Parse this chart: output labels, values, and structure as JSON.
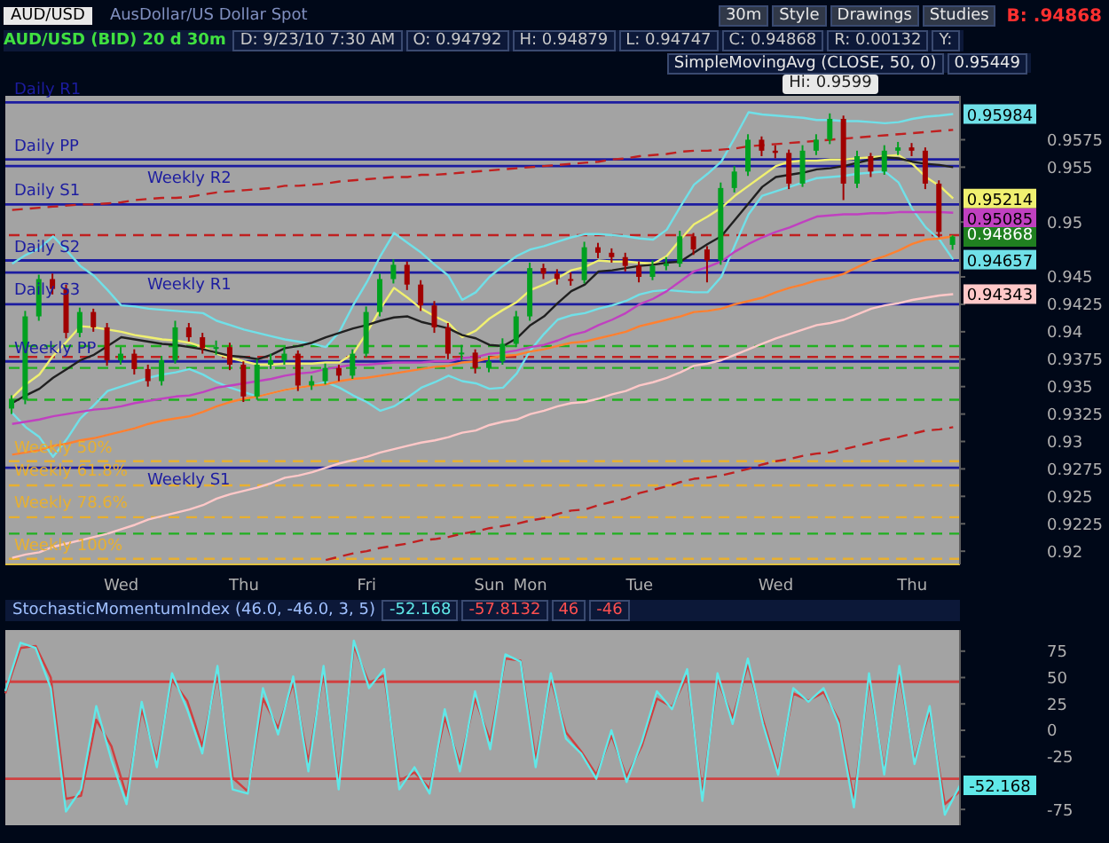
{
  "chart_data": [
    {
      "type": "candlestick",
      "title": "AUD/USD (BID) 20 d 30m",
      "annotations": [
        "AUD/USD",
        "AusDollar/US Dollar Spot",
        "30m",
        "Style",
        "Drawings",
        "Studies",
        "B: .94868",
        "D: 9/23/10 7:30 AM",
        "O: 0.94792",
        "H: 0.94879",
        "L: 0.94747",
        "C: 0.94868",
        "R: 0.00132",
        "Y:",
        "SimpleMovingAvg (CLOSE, 50, 0)",
        "0.95449",
        {
          "text": "Hi: 0.9599",
          "y": 0.9599
        },
        "0.94868"
      ],
      "categories": [
        null,
        null,
        null,
        null,
        null,
        null,
        null,
        null,
        "Wed",
        null,
        null,
        null,
        null,
        null,
        null,
        null,
        null,
        "Thu",
        null,
        null,
        null,
        null,
        null,
        null,
        null,
        null,
        "Fri",
        null,
        null,
        null,
        null,
        null,
        null,
        null,
        null,
        "Sun",
        null,
        null,
        "Mon",
        null,
        null,
        null,
        null,
        null,
        null,
        null,
        "Tue",
        null,
        null,
        null,
        null,
        null,
        null,
        null,
        null,
        null,
        "Wed",
        null,
        null,
        null,
        null,
        null,
        null,
        null,
        null,
        null,
        "Thu",
        null,
        null,
        null
      ],
      "ohlc": [
        [
          0.933,
          0.9342,
          0.9325,
          0.9338
        ],
        [
          0.9338,
          0.9419,
          0.9334,
          0.9414
        ],
        [
          0.9414,
          0.9452,
          0.941,
          0.9448
        ],
        [
          0.9448,
          0.9453,
          0.9434,
          0.9439
        ],
        [
          0.9439,
          0.9443,
          0.9394,
          0.9399
        ],
        [
          0.9399,
          0.9422,
          0.9395,
          0.9418
        ],
        [
          0.9418,
          0.9421,
          0.94,
          0.9404
        ],
        [
          0.9404,
          0.9408,
          0.9369,
          0.9374
        ],
        [
          0.9374,
          0.9386,
          0.937,
          0.938
        ],
        [
          0.938,
          0.9384,
          0.9361,
          0.9366
        ],
        [
          0.9366,
          0.937,
          0.935,
          0.9355
        ],
        [
          0.9355,
          0.9378,
          0.9351,
          0.9374
        ],
        [
          0.9374,
          0.941,
          0.9371,
          0.9404
        ],
        [
          0.9404,
          0.9408,
          0.9391,
          0.9395
        ],
        [
          0.9395,
          0.9399,
          0.938,
          0.9385
        ],
        [
          0.9385,
          0.9392,
          0.9379,
          0.9386
        ],
        [
          0.9386,
          0.939,
          0.9365,
          0.937
        ],
        [
          0.937,
          0.9373,
          0.9336,
          0.9341
        ],
        [
          0.9341,
          0.9375,
          0.9338,
          0.937
        ],
        [
          0.937,
          0.938,
          0.9366,
          0.9374
        ],
        [
          0.9374,
          0.9386,
          0.937,
          0.938
        ],
        [
          0.938,
          0.9383,
          0.9346,
          0.9351
        ],
        [
          0.9351,
          0.936,
          0.9347,
          0.9355
        ],
        [
          0.9355,
          0.9371,
          0.9352,
          0.9367
        ],
        [
          0.9367,
          0.937,
          0.9355,
          0.936
        ],
        [
          0.936,
          0.9384,
          0.9357,
          0.938
        ],
        [
          0.938,
          0.9423,
          0.9377,
          0.9418
        ],
        [
          0.9418,
          0.9453,
          0.9414,
          0.9448
        ],
        [
          0.9448,
          0.9466,
          0.9444,
          0.9461
        ],
        [
          0.9461,
          0.9464,
          0.9438,
          0.9443
        ],
        [
          0.9443,
          0.9447,
          0.9419,
          0.9424
        ],
        [
          0.9424,
          0.9428,
          0.9399,
          0.9404
        ],
        [
          0.9404,
          0.9408,
          0.9375,
          0.938
        ],
        [
          0.938,
          0.9388,
          0.9374,
          0.9381
        ],
        [
          0.9381,
          0.9384,
          0.9362,
          0.9367
        ],
        [
          0.9367,
          0.9378,
          0.9363,
          0.9373
        ],
        [
          0.9373,
          0.9394,
          0.937,
          0.9389
        ],
        [
          0.9389,
          0.9419,
          0.9386,
          0.9414
        ],
        [
          0.9414,
          0.9463,
          0.941,
          0.9458
        ],
        [
          0.9458,
          0.9462,
          0.9448,
          0.9453
        ],
        [
          0.9453,
          0.9457,
          0.9443,
          0.9448
        ],
        [
          0.9448,
          0.9454,
          0.9442,
          0.9447
        ],
        [
          0.9447,
          0.9482,
          0.9444,
          0.9477
        ],
        [
          0.9477,
          0.9481,
          0.9467,
          0.9472
        ],
        [
          0.9472,
          0.9476,
          0.9463,
          0.9468
        ],
        [
          0.9468,
          0.9472,
          0.9455,
          0.946
        ],
        [
          0.946,
          0.9464,
          0.9445,
          0.945
        ],
        [
          0.945,
          0.9465,
          0.9447,
          0.946
        ],
        [
          0.946,
          0.9468,
          0.9456,
          0.9462
        ],
        [
          0.9462,
          0.9492,
          0.9459,
          0.9487
        ],
        [
          0.9487,
          0.949,
          0.947,
          0.9475
        ],
        [
          0.9475,
          0.9478,
          0.9445,
          0.9465
        ],
        [
          0.9465,
          0.9536,
          0.9461,
          0.9531
        ],
        [
          0.9531,
          0.9551,
          0.9527,
          0.9546
        ],
        [
          0.9546,
          0.958,
          0.9542,
          0.9575
        ],
        [
          0.9575,
          0.9578,
          0.956,
          0.9565
        ],
        [
          0.9565,
          0.957,
          0.9558,
          0.9563
        ],
        [
          0.9563,
          0.9566,
          0.953,
          0.9535
        ],
        [
          0.9535,
          0.957,
          0.9532,
          0.9565
        ],
        [
          0.9565,
          0.958,
          0.9561,
          0.9575
        ],
        [
          0.9575,
          0.9599,
          0.9571,
          0.9594
        ],
        [
          0.9594,
          0.9597,
          0.952,
          0.9535
        ],
        [
          0.9535,
          0.9565,
          0.9531,
          0.956
        ],
        [
          0.956,
          0.9563,
          0.9541,
          0.9546
        ],
        [
          0.9546,
          0.957,
          0.9543,
          0.9565
        ],
        [
          0.9565,
          0.9573,
          0.9561,
          0.9568
        ],
        [
          0.9568,
          0.9572,
          0.956,
          0.9565
        ],
        [
          0.9565,
          0.9568,
          0.953,
          0.9535
        ],
        [
          0.9535,
          0.9538,
          0.9486,
          0.9491
        ],
        [
          0.94792,
          0.94879,
          0.94747,
          0.94868
        ]
      ],
      "series": [
        {
          "type": "line",
          "color": "#70e0e8",
          "values": [
            0.9462,
            0.947,
            0.9476,
            0.9487,
            0.9474,
            0.946,
            0.9451,
            0.9438,
            0.9424,
            0.9423,
            0.9421,
            0.942,
            0.9419,
            0.9418,
            0.9417,
            0.941,
            0.9406,
            0.9402,
            0.9399,
            0.9396,
            0.9393,
            0.9391,
            0.9389,
            0.9386,
            0.94,
            0.9424,
            0.9445,
            0.9469,
            0.949,
            0.9481,
            0.9472,
            0.9461,
            0.9451,
            0.9429,
            0.9436,
            0.945,
            0.946,
            0.9469,
            0.9475,
            0.9478,
            0.9482,
            0.9486,
            0.9489,
            0.9489,
            0.9488,
            0.9487,
            0.9485,
            0.9484,
            0.9493,
            0.9514,
            0.9534,
            0.9544,
            0.9555,
            0.9577,
            0.96,
            0.9598,
            0.9597,
            0.9596,
            0.9595,
            0.9593,
            0.9593,
            0.9592,
            0.9592,
            0.9591,
            0.959,
            0.9591,
            0.9594,
            0.9596,
            0.9597,
            0.95984
          ],
          "value_labels": [
            null,
            null,
            null,
            null,
            null,
            null,
            null,
            null,
            null,
            null,
            null,
            null,
            null,
            null,
            null,
            null,
            null,
            null,
            null,
            null,
            null,
            null,
            null,
            null,
            null,
            null,
            null,
            null,
            null,
            null,
            null,
            null,
            null,
            null,
            null,
            null,
            null,
            null,
            null,
            null,
            null,
            null,
            null,
            null,
            null,
            null,
            null,
            null,
            null,
            null,
            null,
            null,
            null,
            null,
            null,
            null,
            null,
            null,
            null,
            null,
            null,
            null,
            null,
            null,
            null,
            null,
            null,
            null,
            null,
            "0.95984"
          ]
        },
        {
          "type": "line",
          "color": "#70e0e8",
          "values": [
            0.9326,
            0.9313,
            0.9304,
            0.9286,
            0.9302,
            0.9321,
            0.9333,
            0.9346,
            0.935,
            0.9354,
            0.9358,
            0.9361,
            0.9363,
            0.9366,
            0.9361,
            0.9354,
            0.9349,
            0.9345,
            0.9341,
            0.9344,
            0.9347,
            0.9349,
            0.9351,
            0.9354,
            0.9349,
            0.9342,
            0.9336,
            0.9328,
            0.9332,
            0.934,
            0.9349,
            0.9354,
            0.936,
            0.9355,
            0.9353,
            0.9348,
            0.9349,
            0.9362,
            0.9383,
            0.9398,
            0.9411,
            0.9415,
            0.9417,
            0.9421,
            0.9424,
            0.9428,
            0.9434,
            0.9437,
            0.9438,
            0.9437,
            0.9436,
            0.9436,
            0.945,
            0.9479,
            0.9507,
            0.9524,
            0.9528,
            0.9532,
            0.9536,
            0.954,
            0.9541,
            0.9542,
            0.9544,
            0.9545,
            0.9546,
            0.9536,
            0.9512,
            0.9495,
            0.9484,
            0.94657
          ],
          "value_labels": [
            null,
            null,
            null,
            null,
            null,
            null,
            null,
            null,
            null,
            null,
            null,
            null,
            null,
            null,
            null,
            null,
            null,
            null,
            null,
            null,
            null,
            null,
            null,
            null,
            null,
            null,
            null,
            null,
            null,
            null,
            null,
            null,
            null,
            null,
            null,
            null,
            null,
            null,
            null,
            null,
            null,
            null,
            null,
            null,
            null,
            null,
            null,
            null,
            null,
            null,
            null,
            null,
            null,
            null,
            null,
            null,
            null,
            null,
            null,
            null,
            null,
            null,
            null,
            null,
            null,
            null,
            null,
            null,
            null,
            "0.94657"
          ]
        },
        {
          "type": "line",
          "color": "#f0f070",
          "values": [
            0.934,
            0.9352,
            0.9361,
            0.9378,
            0.9391,
            0.9405,
            0.9404,
            0.9402,
            0.94,
            0.9397,
            0.9395,
            0.9393,
            0.9392,
            0.939,
            0.9386,
            0.938,
            0.9376,
            0.9373,
            0.937,
            0.937,
            0.9371,
            0.9371,
            0.9371,
            0.9372,
            0.9372,
            0.938,
            0.9399,
            0.9421,
            0.944,
            0.9431,
            0.9421,
            0.9414,
            0.9408,
            0.9395,
            0.9401,
            0.9412,
            0.942,
            0.9427,
            0.9438,
            0.9443,
            0.9449,
            0.9456,
            0.9459,
            0.9465,
            0.9464,
            0.9464,
            0.9463,
            0.9462,
            0.9469,
            0.9484,
            0.9498,
            0.9505,
            0.9513,
            0.9524,
            0.9533,
            0.9542,
            0.9551,
            0.9555,
            0.9556,
            0.9556,
            0.9557,
            0.9557,
            0.9558,
            0.9559,
            0.956,
            0.9561,
            0.9553,
            0.9541,
            0.9533,
            0.95214
          ],
          "value_labels": [
            null,
            null,
            null,
            null,
            null,
            null,
            null,
            null,
            null,
            null,
            null,
            null,
            null,
            null,
            null,
            null,
            null,
            null,
            null,
            null,
            null,
            null,
            null,
            null,
            null,
            null,
            null,
            null,
            null,
            null,
            null,
            null,
            null,
            null,
            null,
            null,
            null,
            null,
            null,
            null,
            null,
            null,
            null,
            null,
            null,
            null,
            null,
            null,
            null,
            null,
            null,
            null,
            null,
            null,
            null,
            null,
            null,
            null,
            null,
            null,
            null,
            null,
            null,
            null,
            null,
            null,
            null,
            null,
            null,
            "0.95214"
          ]
        },
        {
          "type": "line",
          "color": "#202020",
          "values": [
            0.9335,
            0.9342,
            0.9348,
            0.9358,
            0.9366,
            0.9374,
            0.9379,
            0.9387,
            0.9395,
            0.9393,
            0.9391,
            0.9389,
            0.9388,
            0.9386,
            0.9384,
            0.9381,
            0.9378,
            0.9377,
            0.9375,
            0.9379,
            0.9385,
            0.9387,
            0.939,
            0.9395,
            0.9399,
            0.9403,
            0.9406,
            0.941,
            0.9413,
            0.9414,
            0.9409,
            0.9406,
            0.9403,
            0.9397,
            0.9394,
            0.9388,
            0.9387,
            0.9394,
            0.9406,
            0.9414,
            0.9426,
            0.9437,
            0.9443,
            0.9455,
            0.9456,
            0.9458,
            0.946,
            0.9461,
            0.9463,
            0.9464,
            0.9472,
            0.948,
            0.9487,
            0.9502,
            0.9517,
            0.9532,
            0.9541,
            0.9543,
            0.9545,
            0.9548,
            0.9549,
            0.9551,
            0.9554,
            0.9557,
            0.9559,
            0.9558,
            0.9555,
            0.9553,
            0.9552,
            0.955
          ]
        },
        {
          "type": "line",
          "color": "#c040c0",
          "values": [
            0.9316,
            0.9318,
            0.932,
            0.9323,
            0.9325,
            0.9327,
            0.9329,
            0.933,
            0.9332,
            0.9335,
            0.9337,
            0.9339,
            0.9341,
            0.9342,
            0.9345,
            0.9349,
            0.9351,
            0.9353,
            0.9355,
            0.9357,
            0.936,
            0.9362,
            0.9363,
            0.9366,
            0.9368,
            0.937,
            0.937,
            0.9371,
            0.9372,
            0.9372,
            0.9372,
            0.9373,
            0.9373,
            0.9376,
            0.9377,
            0.938,
            0.9381,
            0.9383,
            0.9386,
            0.9388,
            0.9392,
            0.9397,
            0.94,
            0.9406,
            0.9411,
            0.9417,
            0.9425,
            0.943,
            0.9437,
            0.9446,
            0.9455,
            0.9459,
            0.9464,
            0.9473,
            0.948,
            0.9486,
            0.9491,
            0.9495,
            0.95,
            0.9505,
            0.9506,
            0.9507,
            0.9507,
            0.9508,
            0.9508,
            0.9509,
            0.9509,
            0.9509,
            0.9509,
            0.95085
          ],
          "value_labels": [
            null,
            null,
            null,
            null,
            null,
            null,
            null,
            null,
            null,
            null,
            null,
            null,
            null,
            null,
            null,
            null,
            null,
            null,
            null,
            null,
            null,
            null,
            null,
            null,
            null,
            null,
            null,
            null,
            null,
            null,
            null,
            null,
            null,
            null,
            null,
            null,
            null,
            null,
            null,
            null,
            null,
            null,
            null,
            null,
            null,
            null,
            null,
            null,
            null,
            null,
            null,
            null,
            null,
            null,
            null,
            null,
            null,
            null,
            null,
            null,
            null,
            null,
            null,
            null,
            null,
            null,
            null,
            null,
            null,
            "0.95085"
          ]
        },
        {
          "type": "line",
          "color": "#ff8030",
          "values": [
            0.9288,
            0.929,
            0.9292,
            0.9296,
            0.9298,
            0.9301,
            0.9303,
            0.9306,
            0.9309,
            0.9312,
            0.9316,
            0.9319,
            0.9321,
            0.9323,
            0.9327,
            0.9332,
            0.9336,
            0.9339,
            0.9341,
            0.9344,
            0.9347,
            0.9349,
            0.9351,
            0.9352,
            0.9355,
            0.9357,
            0.9358,
            0.936,
            0.9362,
            0.9364,
            0.9366,
            0.9368,
            0.9369,
            0.9372,
            0.9373,
            0.9376,
            0.9378,
            0.9379,
            0.9382,
            0.9384,
            0.9387,
            0.939,
            0.9391,
            0.9394,
            0.9397,
            0.94,
            0.9405,
            0.9408,
            0.9411,
            0.9414,
            0.9418,
            0.9419,
            0.9421,
            0.9425,
            0.9428,
            0.9431,
            0.9436,
            0.944,
            0.9443,
            0.9447,
            0.9449,
            0.9453,
            0.9459,
            0.9465,
            0.9469,
            0.9474,
            0.948,
            0.9484,
            0.9485,
            0.9487
          ]
        },
        {
          "type": "line",
          "color": "#ffc8c8",
          "values": [
            0.9194,
            0.9197,
            0.9199,
            0.9204,
            0.9207,
            0.921,
            0.9213,
            0.9216,
            0.922,
            0.9224,
            0.9229,
            0.9232,
            0.9235,
            0.9238,
            0.9242,
            0.9248,
            0.9252,
            0.9255,
            0.9258,
            0.9262,
            0.9267,
            0.9269,
            0.9272,
            0.9276,
            0.928,
            0.9283,
            0.9286,
            0.929,
            0.9293,
            0.9296,
            0.9299,
            0.9301,
            0.9304,
            0.9308,
            0.931,
            0.9315,
            0.9318,
            0.932,
            0.9325,
            0.9328,
            0.9332,
            0.9335,
            0.9336,
            0.9339,
            0.9343,
            0.9346,
            0.9351,
            0.9354,
            0.9358,
            0.9363,
            0.9369,
            0.9371,
            0.9374,
            0.9379,
            0.9384,
            0.9389,
            0.9394,
            0.9398,
            0.9402,
            0.9406,
            0.9408,
            0.9411,
            0.9416,
            0.9421,
            0.9424,
            0.9426,
            0.9429,
            0.9431,
            0.9433,
            0.94343
          ],
          "value_labels": [
            null,
            null,
            null,
            null,
            null,
            null,
            null,
            null,
            null,
            null,
            null,
            null,
            null,
            null,
            null,
            null,
            null,
            null,
            null,
            null,
            null,
            null,
            null,
            null,
            null,
            null,
            null,
            null,
            null,
            null,
            null,
            null,
            null,
            null,
            null,
            null,
            null,
            null,
            null,
            null,
            null,
            null,
            null,
            null,
            null,
            null,
            null,
            null,
            null,
            null,
            null,
            null,
            null,
            null,
            null,
            null,
            null,
            null,
            null,
            null,
            null,
            null,
            null,
            null,
            null,
            null,
            null,
            null,
            null,
            "0.94343"
          ]
        },
        {
          "type": "line",
          "color": "#c02020",
          "line_style": "dashed",
          "values": [
            0.9511,
            0.9512,
            0.9513,
            0.9514,
            0.9515,
            0.9516,
            0.9516,
            0.9517,
            0.9518,
            0.952,
            0.9521,
            0.9522,
            0.9522,
            0.9523,
            0.9525,
            0.9527,
            0.9528,
            0.9529,
            0.953,
            0.9531,
            0.9533,
            0.9533,
            0.9534,
            0.9535,
            0.9537,
            0.9538,
            0.9539,
            0.954,
            0.9541,
            0.9541,
            0.9543,
            0.9543,
            0.9544,
            0.9545,
            0.9546,
            0.9547,
            0.9548,
            0.9549,
            0.955,
            0.9551,
            0.9552,
            0.9553,
            0.9554,
            0.9555,
            0.9557,
            0.9558,
            0.956,
            0.9561,
            0.9562,
            0.9564,
            0.9565,
            0.9565,
            0.9566,
            0.9567,
            0.9569,
            0.957,
            0.9571,
            0.9572,
            0.9573,
            0.9574,
            0.9575,
            0.9576,
            0.9577,
            0.9578,
            0.9579,
            0.958,
            0.9581,
            0.9582,
            0.9583,
            0.9584
          ]
        },
        {
          "type": "line",
          "color": "#c02020",
          "line_style": "dashed",
          "values": [
            null,
            null,
            null,
            null,
            null,
            null,
            null,
            null,
            null,
            null,
            null,
            null,
            null,
            null,
            null,
            null,
            null,
            null,
            null,
            null,
            null,
            null,
            null,
            0.9192,
            0.9195,
            0.9198,
            0.92,
            0.9203,
            0.9205,
            0.9207,
            0.921,
            0.9211,
            0.9213,
            0.9216,
            0.9218,
            0.9221,
            0.9223,
            0.9225,
            0.9228,
            0.923,
            0.9234,
            0.9237,
            0.9238,
            0.9242,
            0.9245,
            0.9248,
            0.9253,
            0.9256,
            0.9259,
            0.9263,
            0.9266,
            0.9267,
            0.9269,
            0.9272,
            0.9275,
            0.9279,
            0.9282,
            0.9284,
            0.9287,
            0.9289,
            0.929,
            0.9293,
            0.9296,
            0.9299,
            0.9302,
            0.9304,
            0.9307,
            0.931,
            0.9311,
            0.9313
          ]
        }
      ],
      "ref_lines": [
        {
          "axis": "y",
          "value": 0.9609,
          "label": "Daily R1",
          "color": "#1c1ca0"
        },
        {
          "axis": "y",
          "value": 0.9557,
          "label": "Daily PP",
          "color": "#1c1ca0"
        },
        {
          "axis": "y",
          "value": 0.9551,
          "label": "Weekly R2",
          "color": "#1c1ca0"
        },
        {
          "axis": "y",
          "value": 0.9516,
          "label": "Daily S1",
          "color": "#1c1ca0"
        },
        {
          "axis": "y",
          "value": 0.9488,
          "color": "#c02020",
          "line_style": "dashed"
        },
        {
          "axis": "y",
          "value": 0.9465,
          "label": "Daily S2",
          "color": "#1c1ca0"
        },
        {
          "axis": "y",
          "value": 0.9454,
          "label": "Weekly R1",
          "color": "#1c1ca0"
        },
        {
          "axis": "y",
          "value": 0.9425,
          "label": "Daily S3",
          "color": "#1c1ca0"
        },
        {
          "axis": "y",
          "value": 0.9387,
          "color": "#20b020",
          "line_style": "dashed"
        },
        {
          "axis": "y",
          "value": 0.9377,
          "color": "#c02020",
          "line_style": "dashed"
        },
        {
          "axis": "y",
          "value": 0.9373,
          "label": "Weekly PP",
          "color": "#1c1ca0"
        },
        {
          "axis": "y",
          "value": 0.9367,
          "color": "#20b020",
          "line_style": "dashed"
        },
        {
          "axis": "y",
          "value": 0.9338,
          "color": "#20b020",
          "line_style": "dashed"
        },
        {
          "axis": "y",
          "value": 0.9282,
          "label": "Weekly 50%",
          "color": "#e8b030",
          "line_style": "dashed"
        },
        {
          "axis": "y",
          "value": 0.9276,
          "label": "Weekly S1",
          "color": "#1c1ca0"
        },
        {
          "axis": "y",
          "value": 0.926,
          "label": "Weekly 61.8%",
          "color": "#e8b030",
          "line_style": "dashed"
        },
        {
          "axis": "y",
          "value": 0.9231,
          "label": "Weekly 78.6%",
          "color": "#e8b030",
          "line_style": "dashed"
        },
        {
          "axis": "y",
          "value": 0.9216,
          "color": "#20b020",
          "line_style": "dashed"
        },
        {
          "axis": "y",
          "value": 0.9193,
          "label": "Weekly 100%",
          "color": "#e8b030",
          "line_style": "dashed"
        }
      ],
      "ylim": [
        0.9188,
        0.9615
      ],
      "yticks": [
        0.92,
        0.9225,
        0.925,
        0.9275,
        0.93,
        0.9325,
        0.935,
        0.9375,
        0.94,
        0.9425,
        0.945,
        0.95,
        0.955,
        0.9575
      ],
      "marker": "none"
    },
    {
      "type": "line",
      "title": "StochasticMomentumIndex (46.0, -46.0, 3, 5)",
      "annotations": [
        "-52.168",
        "-57.8132",
        "46",
        "-46"
      ],
      "categories": [
        null,
        null,
        null,
        null,
        null,
        null,
        null,
        null,
        null,
        null,
        null,
        null,
        null,
        null,
        null,
        null,
        null,
        null,
        null,
        null,
        null,
        null,
        null,
        null,
        null,
        null,
        null,
        null,
        null,
        null,
        null,
        null,
        null,
        null,
        null,
        null,
        null,
        null,
        null,
        null,
        null,
        null,
        null,
        null,
        null,
        null,
        null,
        null,
        null,
        null,
        null,
        null,
        null,
        null,
        null,
        null,
        null,
        null,
        null,
        null,
        null,
        null,
        null,
        null
      ],
      "series": [
        {
          "color": "#d04040",
          "values": [
            35,
            78,
            80,
            50,
            -65,
            -62,
            10,
            -15,
            -62,
            20,
            -28,
            48,
            28,
            -15,
            55,
            -45,
            -58,
            30,
            2,
            45,
            -30,
            55,
            -48,
            80,
            45,
            52,
            -48,
            -40,
            -55,
            12,
            -32,
            30,
            -10,
            68,
            66,
            -28,
            48,
            -2,
            -20,
            -42,
            -5,
            -44,
            -15,
            30,
            22,
            52,
            -60,
            48,
            12,
            62,
            10,
            -38,
            35,
            28,
            36,
            10,
            -66,
            48,
            -38,
            55,
            -28,
            18,
            -70,
            -57.8132
          ]
        },
        {
          "color": "#60e8e8",
          "values": [
            37,
            83,
            78,
            40,
            -77,
            -56,
            23,
            -28,
            -70,
            27,
            -35,
            54,
            20,
            -22,
            61,
            -56,
            -60,
            40,
            -4,
            51,
            -39,
            61,
            -56,
            85,
            40,
            58,
            -56,
            -35,
            -60,
            20,
            -39,
            37,
            -18,
            72,
            65,
            -35,
            54,
            -8,
            -22,
            -46,
            0,
            -49,
            -11,
            37,
            20,
            58,
            -67,
            54,
            6,
            68,
            6,
            -42,
            40,
            27,
            40,
            6,
            -73,
            54,
            -42,
            61,
            -32,
            23,
            -80,
            -52.168
          ],
          "value_labels": [
            null,
            null,
            null,
            null,
            null,
            null,
            null,
            null,
            null,
            null,
            null,
            null,
            null,
            null,
            null,
            null,
            null,
            null,
            null,
            null,
            null,
            null,
            null,
            null,
            null,
            null,
            null,
            null,
            null,
            null,
            null,
            null,
            null,
            null,
            null,
            null,
            null,
            null,
            null,
            null,
            null,
            null,
            null,
            null,
            null,
            null,
            null,
            null,
            null,
            null,
            null,
            null,
            null,
            null,
            null,
            null,
            null,
            null,
            null,
            null,
            null,
            null,
            null,
            "-52.168"
          ]
        }
      ],
      "ref_lines": [
        {
          "axis": "y",
          "value": 46,
          "color": "#d04040"
        },
        {
          "axis": "y",
          "value": -46,
          "color": "#d04040"
        }
      ],
      "ylim": [
        -90,
        95
      ],
      "yticks": [
        -75,
        -25,
        0,
        25,
        50,
        75
      ],
      "tick_labels": "y",
      "marker": "none"
    }
  ]
}
